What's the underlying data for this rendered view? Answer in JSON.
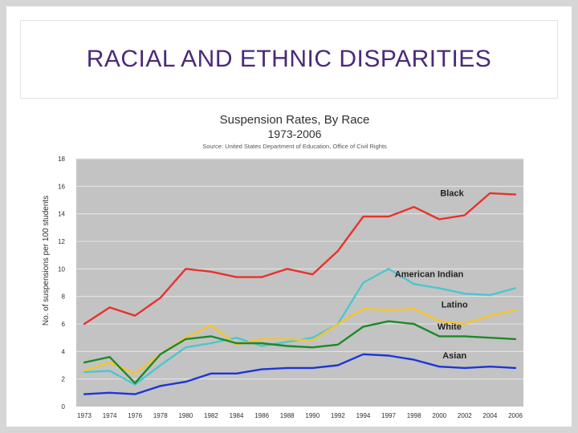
{
  "slide": {
    "title": "RACIAL AND ETHNIC DISPARITIES"
  },
  "colors": {
    "title": "#4a2a7a",
    "plot_bg": "#c3c3c3",
    "grid": "#e6e6e6",
    "label": "#2f2f2f"
  },
  "chart_data": {
    "type": "line",
    "title": "Suspension Rates, By Race",
    "subtitle": "1973-2006",
    "source": "Source: United States Department of Education, Office of Civil Rights",
    "xlabel": "",
    "ylabel": "No. of suspensions per 100 students",
    "ylim": [
      0,
      18
    ],
    "yticks": [
      0,
      2,
      4,
      6,
      8,
      10,
      12,
      14,
      16,
      18
    ],
    "grid": true,
    "categories": [
      "1973",
      "1974",
      "1976",
      "1978",
      "1980",
      "1982",
      "1984",
      "1986",
      "1988",
      "1990",
      "1992",
      "1994",
      "1997",
      "1998",
      "2000",
      "2002",
      "2004",
      "2006"
    ],
    "series": [
      {
        "name": "Black",
        "color": "#e8322b",
        "values": [
          6.0,
          7.2,
          6.6,
          7.9,
          10.0,
          9.8,
          9.4,
          9.4,
          10.0,
          9.6,
          11.3,
          13.8,
          13.8,
          14.5,
          13.6,
          13.9,
          15.5,
          15.4
        ]
      },
      {
        "name": "American Indian",
        "color": "#4cc6cf",
        "values": [
          2.5,
          2.6,
          1.6,
          3.0,
          4.3,
          4.6,
          5.0,
          4.4,
          4.7,
          5.0,
          6.0,
          9.0,
          10.0,
          8.9,
          8.6,
          8.2,
          8.1,
          8.6
        ]
      },
      {
        "name": "Latino",
        "color": "#f6c527",
        "values": [
          2.6,
          3.2,
          2.4,
          3.8,
          5.0,
          5.9,
          4.5,
          4.9,
          4.9,
          4.8,
          6.0,
          7.1,
          7.0,
          7.1,
          6.2,
          6.0,
          6.6,
          7.0
        ]
      },
      {
        "name": "White",
        "color": "#1d8a27",
        "values": [
          3.2,
          3.6,
          1.7,
          3.8,
          4.9,
          5.1,
          4.6,
          4.6,
          4.4,
          4.3,
          4.5,
          5.8,
          6.2,
          6.0,
          5.1,
          5.1,
          5.0,
          4.9
        ]
      },
      {
        "name": "Asian",
        "color": "#1d35d8",
        "values": [
          0.9,
          1.0,
          0.9,
          1.5,
          1.8,
          2.4,
          2.4,
          2.7,
          2.8,
          2.8,
          3.0,
          3.8,
          3.7,
          3.4,
          2.9,
          2.8,
          2.9,
          2.8
        ]
      }
    ],
    "annotations": [
      "Black",
      "American Indian",
      "Latino",
      "White",
      "Asian"
    ]
  }
}
